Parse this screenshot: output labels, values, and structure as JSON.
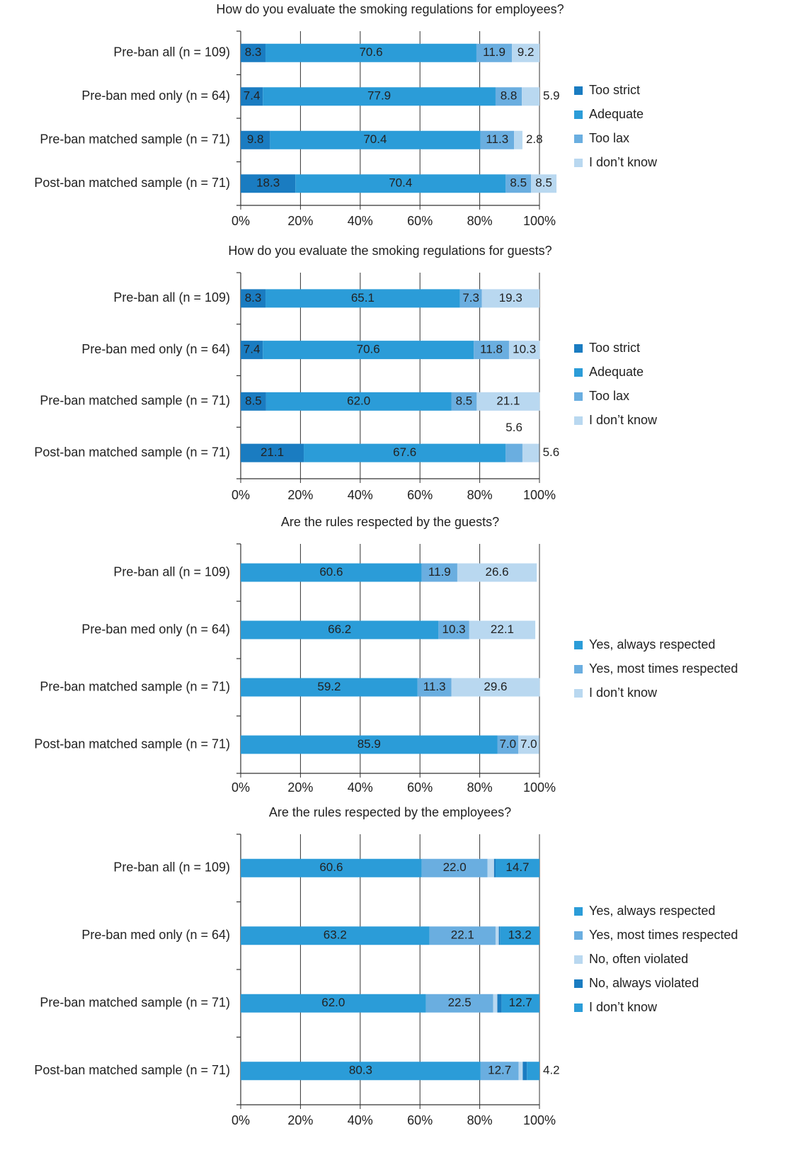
{
  "chart_data": [
    {
      "type": "bar",
      "orientation": "horizontal",
      "stacked": true,
      "title": "How do you evaluate the smoking regulations for employees?",
      "categories": [
        "Pre-ban all (n = 109)",
        "Pre-ban med only (n = 64)",
        "Pre-ban matched sample (n = 71)",
        "Post-ban matched sample (n = 71)"
      ],
      "series": [
        {
          "name": "Too strict",
          "color": "#1a7cc1",
          "values": [
            8.3,
            7.4,
            9.8,
            18.3
          ],
          "value_labels": [
            "8.3",
            "7.4",
            "9.8",
            "18.3"
          ]
        },
        {
          "name": "Adequate",
          "color": "#2b9cd8",
          "values": [
            70.6,
            77.9,
            70.4,
            70.4
          ],
          "value_labels": [
            "70.6",
            "77.9",
            "70.4",
            "70.4"
          ]
        },
        {
          "name": "Too lax",
          "color": "#6aaee0",
          "values": [
            11.9,
            8.8,
            11.3,
            8.5
          ],
          "value_labels": [
            "11.9",
            "8.8",
            "11.3",
            "8.5"
          ]
        },
        {
          "name": "I don’t know",
          "color": "#b9d8f0",
          "values": [
            9.2,
            5.9,
            2.8,
            8.5
          ],
          "value_labels": [
            "9.2",
            "5.9",
            "2.8",
            "8.5"
          ]
        }
      ],
      "xlim": [
        0,
        100
      ],
      "xticks": [
        {
          "value": 0,
          "label": "0%"
        },
        {
          "value": 20,
          "label": "20%"
        },
        {
          "value": 40,
          "label": "40%"
        },
        {
          "value": 60,
          "label": "60%"
        },
        {
          "value": 80,
          "label": "80%"
        },
        {
          "value": 100,
          "label": "100%"
        }
      ],
      "grid": true,
      "legend": "right"
    },
    {
      "type": "bar",
      "orientation": "horizontal",
      "stacked": true,
      "title": "How do you evaluate the smoking regulations for guests?",
      "categories": [
        "Pre-ban all (n = 109)",
        "Pre-ban med only (n = 64)",
        "Pre-ban matched sample (n = 71)",
        "Post-ban matched sample (n = 71)"
      ],
      "series": [
        {
          "name": "Too strict",
          "color": "#1a7cc1",
          "values": [
            8.3,
            7.4,
            8.5,
            21.1
          ],
          "value_labels": [
            "8.3",
            "7.4",
            "8.5",
            "21.1"
          ]
        },
        {
          "name": "Adequate",
          "color": "#2b9cd8",
          "values": [
            65.1,
            70.6,
            62.0,
            67.6
          ],
          "value_labels": [
            "65.1",
            "70.6",
            "62.0",
            "67.6"
          ]
        },
        {
          "name": "Too lax",
          "color": "#6aaee0",
          "values": [
            7.3,
            11.8,
            8.5,
            5.6
          ],
          "value_labels": [
            "7.3",
            "11.8",
            "8.5",
            "5.6"
          ]
        },
        {
          "name": "I don’t know",
          "color": "#b9d8f0",
          "values": [
            19.3,
            10.3,
            21.1,
            5.6
          ],
          "value_labels": [
            "19.3",
            "10.3",
            "21.1",
            "5.6"
          ]
        }
      ],
      "xlim": [
        0,
        100
      ],
      "xticks": [
        {
          "value": 0,
          "label": "0%"
        },
        {
          "value": 20,
          "label": "20%"
        },
        {
          "value": 40,
          "label": "40%"
        },
        {
          "value": 60,
          "label": "60%"
        },
        {
          "value": 80,
          "label": "80%"
        },
        {
          "value": 100,
          "label": "100%"
        }
      ],
      "grid": true,
      "legend": "right"
    },
    {
      "type": "bar",
      "orientation": "horizontal",
      "stacked": true,
      "title": "Are the rules respected by the guests?",
      "categories": [
        "Pre-ban all (n = 109)",
        "Pre-ban med only (n = 64)",
        "Pre-ban matched sample (n = 71)",
        "Post-ban matched sample (n = 71)"
      ],
      "series": [
        {
          "name": "Yes, always respected",
          "color": "#2b9cd8",
          "values": [
            60.6,
            66.2,
            59.2,
            85.9
          ],
          "value_labels": [
            "60.6",
            "66.2",
            "59.2",
            "85.9"
          ]
        },
        {
          "name": "Yes, most times respected",
          "color": "#6aaee0",
          "values": [
            11.9,
            10.3,
            11.3,
            7.0
          ],
          "value_labels": [
            "11.9",
            "10.3",
            "11.3",
            "7.0"
          ]
        },
        {
          "name": "I don’t know",
          "color": "#b9d8f0",
          "values": [
            26.6,
            22.1,
            29.6,
            7.0
          ],
          "value_labels": [
            "26.6",
            "22.1",
            "29.6",
            "7.0"
          ]
        }
      ],
      "xlim": [
        0,
        100
      ],
      "xticks": [
        {
          "value": 0,
          "label": "0%"
        },
        {
          "value": 20,
          "label": "20%"
        },
        {
          "value": 40,
          "label": "40%"
        },
        {
          "value": 60,
          "label": "60%"
        },
        {
          "value": 80,
          "label": "80%"
        },
        {
          "value": 100,
          "label": "100%"
        }
      ],
      "grid": true,
      "legend": "right"
    },
    {
      "type": "bar",
      "orientation": "horizontal",
      "stacked": true,
      "title": "Are the rules respected by the employees?",
      "categories": [
        "Pre-ban all (n = 109)",
        "Pre-ban med only (n = 64)",
        "Pre-ban matched sample (n = 71)",
        "Post-ban matched sample (n = 71)"
      ],
      "series": [
        {
          "name": "Yes, always respected",
          "color": "#2b9cd8",
          "values": [
            60.6,
            63.2,
            62.0,
            80.3
          ],
          "value_labels": [
            "60.6",
            "63.2",
            "62.0",
            "80.3"
          ]
        },
        {
          "name": "Yes, most times respected",
          "color": "#6aaee0",
          "values": [
            22.0,
            22.1,
            22.5,
            12.7
          ],
          "value_labels": [
            "22.0",
            "22.1",
            "22.5",
            "12.7"
          ]
        },
        {
          "name": "No, often violated",
          "color": "#b9d8f0",
          "values": [
            2.2,
            1.1,
            1.4,
            1.4
          ],
          "value_labels": [
            null,
            null,
            null,
            null
          ]
        },
        {
          "name": "No, always violated",
          "color": "#1a7cc1",
          "values": [
            0.5,
            0.4,
            1.4,
            1.4
          ],
          "value_labels": [
            null,
            null,
            null,
            null
          ]
        },
        {
          "name": "I don’t know",
          "color": "#2b9cd8",
          "values": [
            14.7,
            13.2,
            12.7,
            4.2
          ],
          "value_labels": [
            "14.7",
            "13.2",
            "12.7",
            "4.2"
          ]
        }
      ],
      "xlim": [
        0,
        100
      ],
      "xticks": [
        {
          "value": 0,
          "label": "0%"
        },
        {
          "value": 20,
          "label": "20%"
        },
        {
          "value": 40,
          "label": "40%"
        },
        {
          "value": 60,
          "label": "60%"
        },
        {
          "value": 80,
          "label": "80%"
        },
        {
          "value": 100,
          "label": "100%"
        }
      ],
      "grid": true,
      "legend": "right"
    }
  ]
}
